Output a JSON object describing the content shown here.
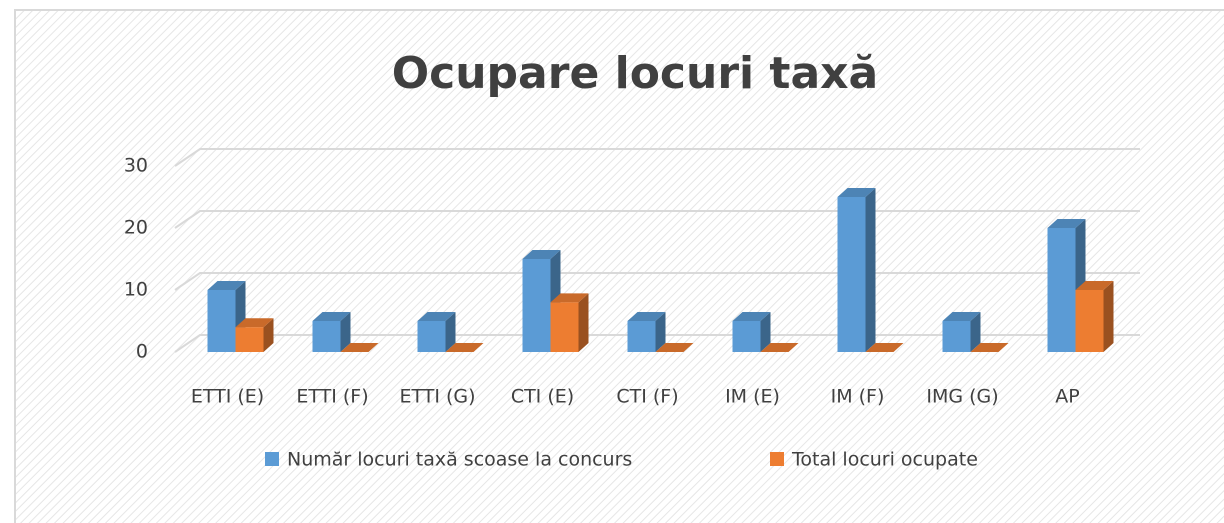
{
  "chart_data": {
    "type": "bar3d",
    "title": "Ocupare locuri taxă",
    "categories": [
      "ETTI (E)",
      "ETTI (F)",
      "ETTI (G)",
      "CTI (E)",
      "CTI (F)",
      "IM (E)",
      "IM (F)",
      "IMG (G)",
      "AP"
    ],
    "series": [
      {
        "name": "Număr locuri taxă scoase la concurs",
        "color": "#5b9bd5",
        "values": [
          10,
          5,
          5,
          15,
          5,
          5,
          25,
          5,
          20
        ]
      },
      {
        "name": "Total locuri ocupate",
        "color": "#ed7d31",
        "values": [
          4,
          0,
          0,
          8,
          0,
          0,
          0,
          0,
          10
        ]
      }
    ],
    "ylim": [
      0,
      30
    ],
    "yticks": [
      0,
      10,
      20,
      30
    ],
    "grid": true,
    "legend": "bottom"
  }
}
